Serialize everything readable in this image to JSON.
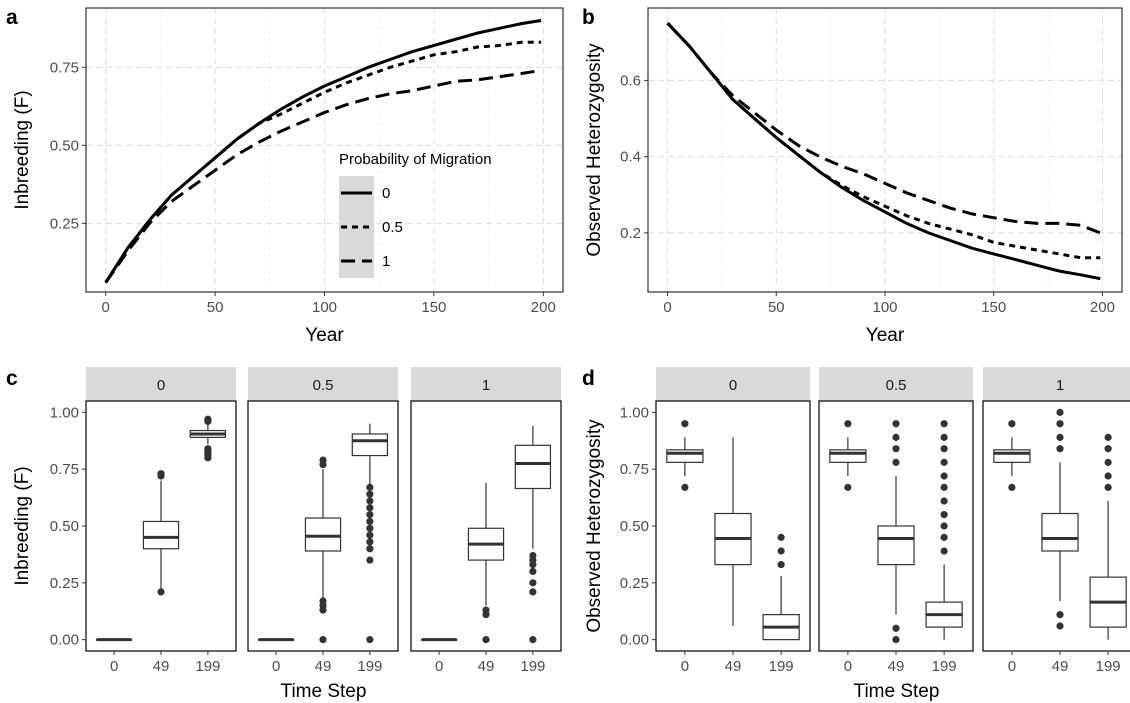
{
  "chart_data": [
    {
      "panel": "a",
      "type": "line",
      "xlabel": "Year",
      "ylabel": "Inbreeding (F)",
      "xlim": [
        -9,
        209
      ],
      "ylim": [
        0.03,
        0.94
      ],
      "xticks": [
        0,
        50,
        100,
        150,
        200
      ],
      "yticks": [
        0.25,
        0.5,
        0.75
      ],
      "ytick_labels": [
        "0.25",
        "0.50",
        "0.75"
      ],
      "grid": true,
      "legend": {
        "title": "Probability of Migration",
        "placement": "inside-bottom-right",
        "entries": [
          "0",
          "0.5",
          "1"
        ]
      },
      "series": [
        {
          "name": "0",
          "dash": "solid",
          "x": [
            0,
            10,
            20,
            30,
            40,
            50,
            60,
            70,
            80,
            90,
            100,
            110,
            120,
            130,
            140,
            150,
            160,
            170,
            180,
            190,
            199
          ],
          "y": [
            0.06,
            0.17,
            0.26,
            0.34,
            0.4,
            0.46,
            0.52,
            0.57,
            0.615,
            0.655,
            0.69,
            0.72,
            0.75,
            0.775,
            0.8,
            0.82,
            0.84,
            0.86,
            0.875,
            0.89,
            0.9
          ]
        },
        {
          "name": "0.5",
          "dash": "dotted",
          "x": [
            0,
            10,
            20,
            30,
            40,
            50,
            60,
            70,
            80,
            90,
            100,
            110,
            120,
            130,
            140,
            150,
            160,
            170,
            180,
            190,
            199
          ],
          "y": [
            0.06,
            0.17,
            0.26,
            0.34,
            0.4,
            0.46,
            0.52,
            0.57,
            0.6,
            0.635,
            0.67,
            0.7,
            0.725,
            0.75,
            0.77,
            0.79,
            0.8,
            0.815,
            0.82,
            0.83,
            0.83
          ]
        },
        {
          "name": "1",
          "dash": "dashed",
          "x": [
            0,
            10,
            20,
            30,
            40,
            50,
            60,
            70,
            80,
            90,
            100,
            110,
            120,
            130,
            140,
            150,
            160,
            170,
            180,
            190,
            199
          ],
          "y": [
            0.06,
            0.16,
            0.25,
            0.32,
            0.37,
            0.42,
            0.47,
            0.51,
            0.545,
            0.575,
            0.605,
            0.63,
            0.65,
            0.665,
            0.675,
            0.69,
            0.705,
            0.71,
            0.72,
            0.73,
            0.74
          ]
        }
      ]
    },
    {
      "panel": "b",
      "type": "line",
      "xlabel": "Year",
      "ylabel": "Observed Heterozygosity",
      "xlim": [
        -9,
        209
      ],
      "ylim": [
        0.045,
        0.79
      ],
      "xticks": [
        0,
        50,
        100,
        150,
        200
      ],
      "yticks": [
        0.2,
        0.4,
        0.6
      ],
      "ytick_labels": [
        "0.2",
        "0.4",
        "0.6"
      ],
      "grid": true,
      "series": [
        {
          "name": "0",
          "dash": "solid",
          "x": [
            0,
            10,
            20,
            30,
            40,
            50,
            60,
            70,
            80,
            90,
            100,
            110,
            120,
            130,
            140,
            150,
            160,
            170,
            180,
            190,
            199
          ],
          "y": [
            0.75,
            0.69,
            0.62,
            0.55,
            0.5,
            0.45,
            0.405,
            0.36,
            0.32,
            0.285,
            0.255,
            0.225,
            0.2,
            0.18,
            0.16,
            0.145,
            0.13,
            0.115,
            0.1,
            0.09,
            0.08
          ]
        },
        {
          "name": "0.5",
          "dash": "dotted",
          "x": [
            0,
            10,
            20,
            30,
            40,
            50,
            60,
            70,
            80,
            90,
            100,
            110,
            120,
            130,
            140,
            150,
            160,
            170,
            180,
            190,
            199
          ],
          "y": [
            0.75,
            0.69,
            0.62,
            0.55,
            0.5,
            0.45,
            0.405,
            0.36,
            0.325,
            0.295,
            0.27,
            0.245,
            0.225,
            0.21,
            0.195,
            0.175,
            0.165,
            0.155,
            0.145,
            0.135,
            0.135
          ]
        },
        {
          "name": "1",
          "dash": "dashed",
          "x": [
            0,
            10,
            20,
            30,
            40,
            50,
            60,
            70,
            80,
            90,
            100,
            110,
            120,
            130,
            140,
            150,
            160,
            170,
            180,
            190,
            199
          ],
          "y": [
            0.75,
            0.69,
            0.62,
            0.56,
            0.515,
            0.47,
            0.43,
            0.4,
            0.375,
            0.355,
            0.33,
            0.305,
            0.285,
            0.265,
            0.25,
            0.24,
            0.23,
            0.225,
            0.225,
            0.22,
            0.2
          ]
        }
      ]
    },
    {
      "panel": "c",
      "type": "box",
      "xlabel": "Time Step",
      "ylabel": "Inbreeding (F)",
      "ylim": [
        -0.05,
        1.05
      ],
      "yticks": [
        0,
        0.25,
        0.5,
        0.75,
        1.0
      ],
      "ytick_labels": [
        "0.00",
        "0.25",
        "0.50",
        "0.75",
        "1.00"
      ],
      "categories": [
        "0",
        "49",
        "199"
      ],
      "facets": [
        {
          "label": "0",
          "boxes": [
            {
              "min": 0,
              "q1": 0,
              "median": 0,
              "q3": 0,
              "max": 0,
              "outliers": []
            },
            {
              "min": 0.21,
              "q1": 0.4,
              "median": 0.45,
              "q3": 0.52,
              "max": 0.7,
              "outliers": [
                0.21,
                0.72,
                0.73
              ]
            },
            {
              "min": 0.86,
              "q1": 0.89,
              "median": 0.905,
              "q3": 0.92,
              "max": 0.95,
              "outliers": [
                0.8,
                0.81,
                0.82,
                0.83,
                0.84,
                0.96,
                0.97
              ]
            }
          ]
        },
        {
          "label": "0.5",
          "boxes": [
            {
              "min": 0,
              "q1": 0,
              "median": 0,
              "q3": 0,
              "max": 0,
              "outliers": []
            },
            {
              "min": 0.18,
              "q1": 0.39,
              "median": 0.455,
              "q3": 0.535,
              "max": 0.75,
              "outliers": [
                0.0,
                0.13,
                0.15,
                0.17,
                0.77,
                0.79
              ]
            },
            {
              "min": 0.68,
              "q1": 0.81,
              "median": 0.875,
              "q3": 0.905,
              "max": 0.95,
              "outliers": [
                0.0,
                0.35,
                0.4,
                0.43,
                0.46,
                0.49,
                0.52,
                0.55,
                0.58,
                0.61,
                0.64,
                0.67
              ]
            }
          ]
        },
        {
          "label": "1",
          "boxes": [
            {
              "min": 0,
              "q1": 0,
              "median": 0,
              "q3": 0,
              "max": 0,
              "outliers": []
            },
            {
              "min": 0.15,
              "q1": 0.35,
              "median": 0.42,
              "q3": 0.49,
              "max": 0.69,
              "outliers": [
                0.0,
                0.11,
                0.13
              ]
            },
            {
              "min": 0.4,
              "q1": 0.665,
              "median": 0.775,
              "q3": 0.855,
              "max": 0.94,
              "outliers": [
                0.0,
                0.21,
                0.25,
                0.3,
                0.33,
                0.35,
                0.37
              ]
            }
          ]
        }
      ]
    },
    {
      "panel": "d",
      "type": "box",
      "xlabel": "Time Step",
      "ylabel": "Observed Heterozygosity",
      "ylim": [
        -0.05,
        1.05
      ],
      "yticks": [
        0,
        0.25,
        0.5,
        0.75,
        1.0
      ],
      "ytick_labels": [
        "0.00",
        "0.25",
        "0.50",
        "0.75",
        "1.00"
      ],
      "categories": [
        "0",
        "49",
        "199"
      ],
      "facets": [
        {
          "label": "0",
          "boxes": [
            {
              "min": 0.72,
              "q1": 0.78,
              "median": 0.82,
              "q3": 0.835,
              "max": 0.89,
              "outliers": [
                0.67,
                0.95
              ]
            },
            {
              "min": 0.06,
              "q1": 0.33,
              "median": 0.445,
              "q3": 0.555,
              "max": 0.89,
              "outliers": []
            },
            {
              "min": 0.0,
              "q1": 0.0,
              "median": 0.055,
              "q3": 0.11,
              "max": 0.28,
              "outliers": [
                0.33,
                0.39,
                0.45
              ]
            }
          ]
        },
        {
          "label": "0.5",
          "boxes": [
            {
              "min": 0.72,
              "q1": 0.78,
              "median": 0.82,
              "q3": 0.835,
              "max": 0.89,
              "outliers": [
                0.67,
                0.95
              ]
            },
            {
              "min": 0.11,
              "q1": 0.33,
              "median": 0.445,
              "q3": 0.5,
              "max": 0.72,
              "outliers": [
                0.0,
                0.05,
                0.78,
                0.84,
                0.89,
                0.95
              ]
            },
            {
              "min": 0.0,
              "q1": 0.055,
              "median": 0.11,
              "q3": 0.165,
              "max": 0.33,
              "outliers": [
                0.39,
                0.45,
                0.5,
                0.55,
                0.61,
                0.67,
                0.72,
                0.78,
                0.84,
                0.89,
                0.95
              ]
            }
          ]
        },
        {
          "label": "1",
          "boxes": [
            {
              "min": 0.72,
              "q1": 0.78,
              "median": 0.82,
              "q3": 0.835,
              "max": 0.89,
              "outliers": [
                0.67,
                0.95
              ]
            },
            {
              "min": 0.17,
              "q1": 0.39,
              "median": 0.445,
              "q3": 0.555,
              "max": 0.78,
              "outliers": [
                0.06,
                0.11,
                0.84,
                0.89,
                0.95,
                1.0
              ]
            },
            {
              "min": 0.0,
              "q1": 0.055,
              "median": 0.165,
              "q3": 0.275,
              "max": 0.61,
              "outliers": [
                0.67,
                0.72,
                0.78,
                0.84,
                0.89
              ]
            }
          ]
        }
      ]
    }
  ]
}
